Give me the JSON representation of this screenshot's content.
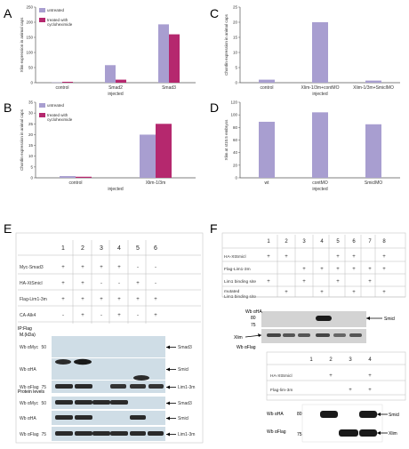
{
  "panels": {
    "A": "A",
    "B": "B",
    "C": "C",
    "D": "D",
    "E": "E",
    "F": "F"
  },
  "chart_data": [
    {
      "panel": "A",
      "type": "bar",
      "categories": [
        "control",
        "Smad2",
        "Smad3"
      ],
      "series": [
        {
          "name": "untreated",
          "values": [
            1,
            58,
            193
          ],
          "color": "#a89ed0"
        },
        {
          "name": "treated with cycloheximide",
          "values": [
            3,
            10,
            160
          ],
          "color": "#b5286e"
        }
      ],
      "xlabel": "injected",
      "ylabel": "Xlim expression in animal caps",
      "ylim": [
        0,
        250
      ],
      "yticks": [
        0,
        50,
        100,
        150,
        200,
        250
      ],
      "legend": "top-left"
    },
    {
      "panel": "B",
      "type": "bar",
      "categories": [
        "control",
        "Xlim-1/3m"
      ],
      "series": [
        {
          "name": "untreated",
          "values": [
            0.8,
            20
          ],
          "color": "#a89ed0"
        },
        {
          "name": "treated with cycloheximide",
          "values": [
            0.5,
            25
          ],
          "color": "#b5286e"
        }
      ],
      "xlabel": "injected",
      "ylabel": "Chordin expression in animal caps",
      "ylim": [
        0,
        35
      ],
      "yticks": [
        0,
        5,
        10,
        15,
        20,
        25,
        30,
        35
      ],
      "legend": "top-left"
    },
    {
      "panel": "C",
      "type": "bar",
      "categories": [
        "control",
        "Xlim-1/3m+contMO",
        "Xlim-1/3m+SmiclMO"
      ],
      "series": [
        {
          "name": "",
          "values": [
            1,
            20,
            0.7
          ],
          "color": "#a89ed0"
        }
      ],
      "xlabel": "injected",
      "ylabel": "Chordin expression in animal caps",
      "ylim": [
        0,
        25
      ],
      "yticks": [
        0,
        5,
        10,
        15,
        20,
        25
      ]
    },
    {
      "panel": "D",
      "type": "bar",
      "categories": [
        "wt",
        "contMO",
        "SmiclMO"
      ],
      "series": [
        {
          "name": "",
          "values": [
            89,
            104,
            85
          ],
          "color": "#a89ed0"
        }
      ],
      "xlabel": "injected",
      "ylabel": "Xlim at st10.5 embryos",
      "ylim": [
        0,
        120
      ],
      "yticks": [
        0,
        20,
        40,
        60,
        80,
        100,
        120
      ]
    }
  ],
  "panelE": {
    "lanes": [
      "1",
      "2",
      "3",
      "4",
      "5",
      "6"
    ],
    "rows": [
      {
        "label": "Myc-Smad3",
        "cells": [
          "+",
          "+",
          "+",
          "+",
          "-",
          "-"
        ]
      },
      {
        "label": "HA-XtSmicl",
        "cells": [
          "+",
          "+",
          "-",
          "-",
          "+",
          "-"
        ]
      },
      {
        "label": "Flag-Lim1-3m",
        "cells": [
          "+",
          "+",
          "+",
          "+",
          "+",
          "+"
        ]
      },
      {
        "label": "CA-Alk4",
        "cells": [
          "-",
          "+",
          "-",
          "+",
          "-",
          "+"
        ]
      }
    ],
    "ip_label": "IP:Flag",
    "mw_label": "M.(kDa)",
    "blots_ip": [
      {
        "wb": "Wb αMyc",
        "mw": "50",
        "right": "Smad3"
      },
      {
        "wb": "Wb αHA",
        "mw": "",
        "right": "Smicl"
      },
      {
        "wb": "Wb αFlag",
        "mw": "75",
        "right": "Lim1-3m"
      }
    ],
    "protein_levels": "Protein levels",
    "blots_levels": [
      {
        "wb": "Wb αMyc",
        "mw": "50",
        "right": "Smad3"
      },
      {
        "wb": "Wb αHA",
        "mw": "",
        "right": "Smicl"
      },
      {
        "wb": "Wb αFlag",
        "mw": "75",
        "right": "Lim1-3m"
      }
    ]
  },
  "panelF": {
    "lanes": [
      "1",
      "2",
      "3",
      "4",
      "5",
      "6",
      "7",
      "8"
    ],
    "rows": [
      {
        "label": "HA-XtSmicl",
        "cells": [
          "+",
          "+",
          "",
          "",
          "+",
          "+",
          "",
          "+"
        ]
      },
      {
        "label": "Flag-Lim1-3m",
        "cells": [
          "",
          "",
          "+",
          "+",
          "+",
          "+",
          "+",
          "+"
        ]
      },
      {
        "label": "Lim1 binding site",
        "cells": [
          "+",
          "",
          "+",
          "",
          "+",
          "",
          "+",
          ""
        ]
      },
      {
        "label": "mutated Lim1 binding site",
        "cells": [
          "",
          "+",
          "",
          "+",
          "",
          "+",
          "",
          "+"
        ]
      }
    ],
    "wb1": "Wb αHA",
    "wb1_mw1": "80",
    "wb1_mw2": "75",
    "wb1_right": "Smicl",
    "wb2": "Wb αFlag",
    "wb2_left": "Xlim",
    "sub": {
      "lanes": [
        "1",
        "2",
        "3",
        "4"
      ],
      "rows": [
        {
          "label": "HA-XtSmicl",
          "cells": [
            "",
            "+",
            "",
            "+"
          ]
        },
        {
          "label": "Flag-lim-3m",
          "cells": [
            "",
            "",
            "+",
            "+"
          ]
        }
      ],
      "wb1": "Wb αHA",
      "mw1": "80",
      "right1": "Smicl",
      "wb2": "Wb αFlag",
      "mw2": "75",
      "right2": "Xlim"
    }
  }
}
